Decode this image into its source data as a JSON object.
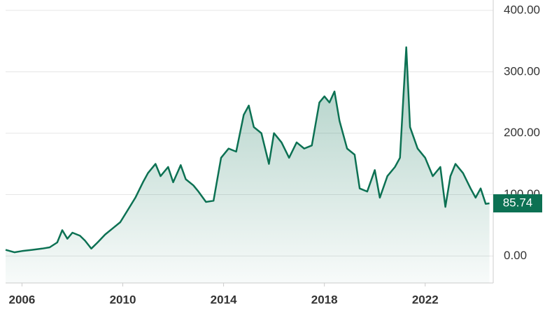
{
  "chart_data": {
    "type": "area",
    "color": "#0c7153",
    "x": [
      2005.35,
      2005.7,
      2006.0,
      2006.4,
      2006.8,
      2007.1,
      2007.4,
      2007.6,
      2007.8,
      2008.0,
      2008.3,
      2008.5,
      2008.75,
      2009.0,
      2009.3,
      2009.6,
      2009.9,
      2010.2,
      2010.5,
      2010.8,
      2011.0,
      2011.3,
      2011.5,
      2011.8,
      2012.0,
      2012.3,
      2012.5,
      2012.8,
      2013.0,
      2013.3,
      2013.6,
      2013.9,
      2014.2,
      2014.5,
      2014.8,
      2015.0,
      2015.2,
      2015.5,
      2015.8,
      2016.0,
      2016.3,
      2016.6,
      2016.9,
      2017.2,
      2017.5,
      2017.8,
      2018.0,
      2018.2,
      2018.4,
      2018.6,
      2018.9,
      2019.2,
      2019.4,
      2019.7,
      2020.0,
      2020.2,
      2020.5,
      2020.8,
      2021.0,
      2021.15,
      2021.25,
      2021.4,
      2021.7,
      2022.0,
      2022.3,
      2022.6,
      2022.8,
      2023.0,
      2023.2,
      2023.5,
      2023.8,
      2024.0,
      2024.2,
      2024.4,
      2024.55
    ],
    "values": [
      10,
      6,
      8,
      10,
      12,
      14,
      22,
      42,
      28,
      38,
      33,
      25,
      12,
      22,
      35,
      45,
      55,
      75,
      95,
      120,
      135,
      150,
      130,
      145,
      120,
      148,
      125,
      115,
      105,
      88,
      90,
      160,
      175,
      170,
      230,
      245,
      210,
      200,
      150,
      200,
      185,
      160,
      185,
      175,
      180,
      250,
      260,
      250,
      268,
      220,
      175,
      165,
      110,
      105,
      140,
      95,
      130,
      145,
      160,
      270,
      340,
      210,
      175,
      160,
      130,
      145,
      80,
      130,
      150,
      135,
      110,
      95,
      110,
      85,
      85.74
    ],
    "current_value": 85.74,
    "xlim": [
      2005.35,
      2024.7
    ],
    "xticks": [
      2006,
      2010,
      2014,
      2018,
      2022
    ],
    "ylim": [
      -44,
      417
    ],
    "yticks": [
      {
        "value": 0,
        "label": "0.00"
      },
      {
        "value": 100,
        "label": "100.00"
      },
      {
        "value": 200,
        "label": "200.00"
      },
      {
        "value": 300,
        "label": "300.00"
      },
      {
        "value": 400,
        "label": "400.00"
      }
    ],
    "grid": true
  }
}
